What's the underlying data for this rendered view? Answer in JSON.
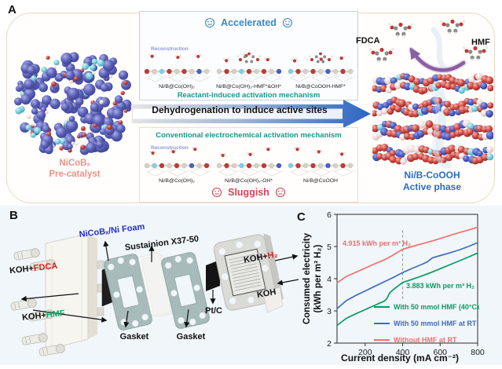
{
  "panel_a": {
    "label": "A",
    "pre_catalyst_label_1": "NiCoBₓ",
    "pre_catalyst_label_2": "Pre-catalyst",
    "accelerated": {
      "title": "Accelerated",
      "reconstruction": "Reconstruction",
      "steps": [
        "Ni/B@Co(OH)₂",
        "Ni/B@Co(OH)₂-HMF*&OH*",
        "Ni/B@CoOOH-HMF*"
      ],
      "mechanism": "Reactant-induced activation mechanism"
    },
    "arrow_text": "Dehydrogenation to induce active sites",
    "conventional": {
      "mechanism": "Conventional electrochemical activation mechanism",
      "reconstruction": "Reconstruction",
      "steps": [
        "Ni/B@Co(OH)₂",
        "Ni/B@Co(OH)₂-OH*",
        "Ni/B@CoOOH"
      ],
      "title": "Sluggish"
    },
    "fdca_label": "FDCA",
    "hmf_label": "HMF",
    "active_phase_label_1": "Ni/B-CoOOH",
    "active_phase_label_2": "Active phase",
    "colors": {
      "accelerated_blue": "#3f87c5",
      "sluggish_red": "#cf4558",
      "mechanism_teal": "#18988a",
      "pre_catalyst_salmon": "#f09184",
      "active_phase_blue": "#2a6cc4"
    }
  },
  "panel_b": {
    "label": "B",
    "electrode_label": "NiCoBₓ/Ni Foam",
    "membrane_label": "Sustainion X37-50",
    "gasket_label_1": "Gasket",
    "gasket_label_2": "Gasket",
    "ptc_label": "Pt/C",
    "inlet_fdca": {
      "prefix": "KOH+",
      "species": "FDCA",
      "color": "#e11d1d"
    },
    "inlet_hmf": {
      "prefix": "KOH+",
      "species": "HMF",
      "color": "#0faa68"
    },
    "outlet_h2": {
      "prefix": "KOH+",
      "species": "H₂",
      "color": "#e11d1d"
    },
    "koh_label": "KOH"
  },
  "panel_c": {
    "label": "C"
  },
  "chart_data": {
    "type": "line",
    "xlabel": "Current density (mA cm⁻²)",
    "ylabel": "Consumed electricity (kWh per m³ H₂)",
    "ylabel_lines": [
      "Consumed electricity",
      "(kWh per m³ H₂)"
    ],
    "xlim": [
      50,
      800
    ],
    "ylim": [
      2,
      6
    ],
    "xticks": [
      200,
      400,
      600,
      800
    ],
    "yticks": [
      2,
      3,
      4,
      5,
      6
    ],
    "grid": false,
    "legend_position": "inside lower right",
    "dashed_guide_x": 400,
    "annotations": [
      {
        "text": "4.915 kWh per m³ H₂",
        "color": "#ef6f6c",
        "x": 78,
        "y": 5.07
      },
      {
        "text": "3.883 kWh per m³ H₂",
        "color": "#0b9a61",
        "x": 419,
        "y": 3.76
      }
    ],
    "series": [
      {
        "name": "With 50 mmol HMF (40°C)",
        "color": "#0b9a61",
        "points": [
          [
            50,
            2.55
          ],
          [
            100,
            2.77
          ],
          [
            150,
            2.91
          ],
          [
            200,
            3.04
          ],
          [
            250,
            3.17
          ],
          [
            300,
            3.3
          ],
          [
            315,
            3.37
          ],
          [
            330,
            3.55
          ],
          [
            345,
            3.64
          ],
          [
            400,
            3.883
          ],
          [
            450,
            3.98
          ],
          [
            500,
            4.08
          ],
          [
            550,
            4.19
          ],
          [
            600,
            4.31
          ],
          [
            650,
            4.43
          ],
          [
            700,
            4.55
          ],
          [
            750,
            4.67
          ],
          [
            800,
            4.8
          ]
        ]
      },
      {
        "name": "With 50 mmol HMF at RT",
        "color": "#3e6cbb",
        "points": [
          [
            50,
            3.07
          ],
          [
            100,
            3.32
          ],
          [
            150,
            3.48
          ],
          [
            200,
            3.62
          ],
          [
            250,
            3.76
          ],
          [
            300,
            3.9
          ],
          [
            350,
            4.04
          ],
          [
            400,
            4.19
          ],
          [
            450,
            4.32
          ],
          [
            500,
            4.44
          ],
          [
            530,
            4.52
          ],
          [
            560,
            4.65
          ],
          [
            600,
            4.72
          ],
          [
            650,
            4.8
          ],
          [
            700,
            4.89
          ],
          [
            750,
            5.0
          ],
          [
            800,
            5.12
          ]
        ]
      },
      {
        "name": "Without HMF at RT",
        "color": "#f2716e",
        "points": [
          [
            50,
            3.87
          ],
          [
            100,
            4.07
          ],
          [
            150,
            4.2
          ],
          [
            200,
            4.33
          ],
          [
            250,
            4.46
          ],
          [
            300,
            4.58
          ],
          [
            350,
            4.74
          ],
          [
            400,
            4.915
          ],
          [
            450,
            5.0
          ],
          [
            500,
            5.08
          ],
          [
            550,
            5.16
          ],
          [
            600,
            5.25
          ],
          [
            650,
            5.34
          ],
          [
            700,
            5.43
          ],
          [
            750,
            5.51
          ],
          [
            800,
            5.6
          ]
        ]
      }
    ]
  }
}
